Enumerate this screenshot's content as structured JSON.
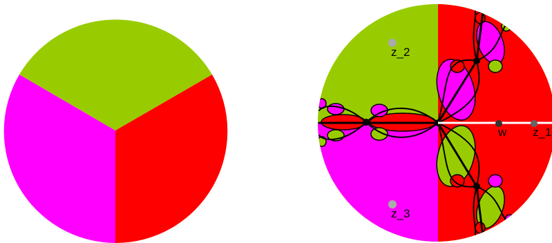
{
  "colors": {
    "green": "#99cc00",
    "red": "#ff0000",
    "magenta": "#ff00ff",
    "julia": "#000000",
    "background": "#ffffff",
    "ray": "#ffffff",
    "point_dark": "#333333",
    "point_mid": "#666666",
    "point_light": "#aaaaaa"
  },
  "left_disk": {
    "sectors": [
      "green",
      "red",
      "magenta"
    ]
  },
  "right_disk": {
    "points": [
      {
        "label": "z_1",
        "color": "point_mid"
      },
      {
        "label": "z_2",
        "color": "point_light"
      },
      {
        "label": "z_3",
        "color": "point_light"
      },
      {
        "label": "w",
        "color": "point_dark"
      }
    ]
  }
}
